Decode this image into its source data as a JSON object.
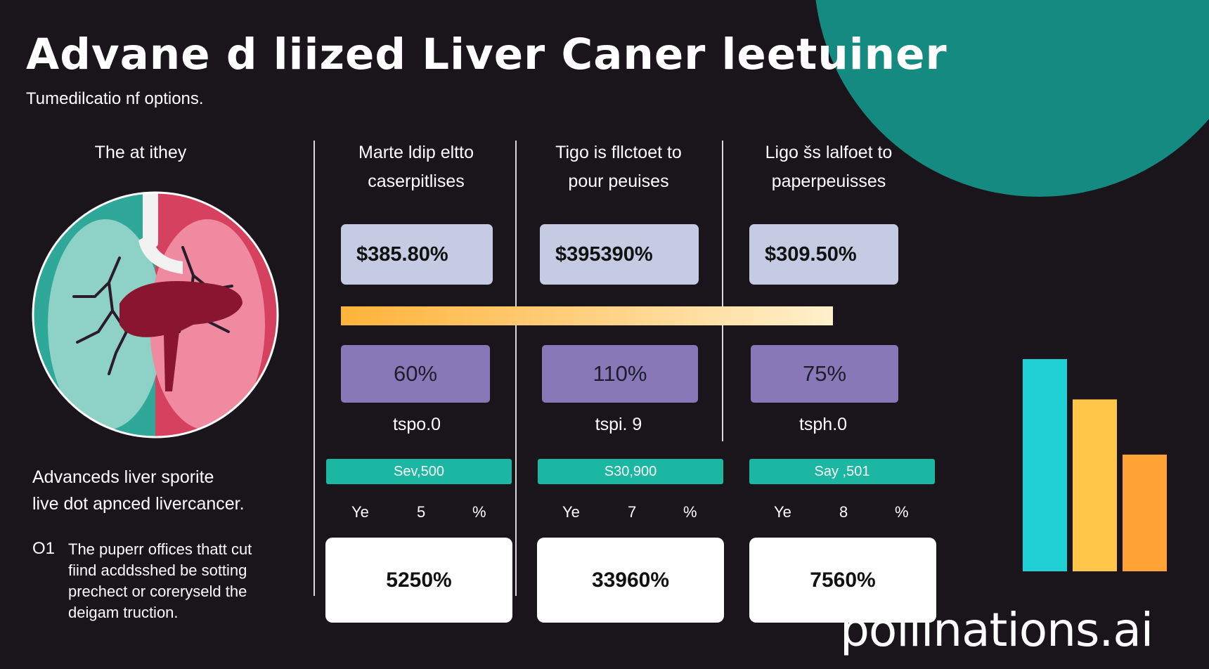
{
  "header": {
    "title": "Advane d liized Liver Caner leetuiner",
    "subtitle": "Tumedilcatio nf options."
  },
  "left": {
    "heading": "The at ithey",
    "desc_line1": "Advanceds liver sporite",
    "desc_line2": "live dot apnced livercancer.",
    "number": "O1",
    "note_line1": "The puperr offices thatt cut",
    "note_line2": "fiind acddsshed be sotting",
    "note_line3": "prechect or coreryseld the",
    "note_line4": "deigam truction."
  },
  "columns": [
    {
      "head_line1": "Marte ldip eltto",
      "head_line2": "caserpitlises",
      "price": "$385.80%",
      "percent": "60%",
      "tsp": "tspo.0",
      "strip": "Sev,500",
      "ye": "Ye",
      "ye_num": "5",
      "ye_pct": "%",
      "result": "5250%"
    },
    {
      "head_line1": "Tigo is fllctoet to",
      "head_line2": "pour peuises",
      "price": "$395390%",
      "percent": "110%",
      "tsp": "tspi. 9",
      "strip": "S30,900",
      "ye": "Ye",
      "ye_num": "7",
      "ye_pct": "%",
      "result": "33960%"
    },
    {
      "head_line1": "Ligo šs lalfoet to",
      "head_line2": "paperpeuisses",
      "price": "$309.50%",
      "percent": "75%",
      "tsp": "tsph.0",
      "strip": "Say ,501",
      "ye": "Ye",
      "ye_num": "8",
      "ye_pct": "%",
      "result": "7560%"
    }
  ],
  "bar_chart": {
    "values": [
      100,
      81,
      55
    ],
    "colors": [
      "#1fcfd3",
      "#ffc64a",
      "#ffa235"
    ]
  },
  "colors": {
    "background": "#19151b",
    "accent_teal": "#148a80",
    "price_box": "#c4cbe2",
    "percent_box": "#8878b7",
    "strip": "#1bb7a2"
  },
  "watermark": "pollinations.ai"
}
